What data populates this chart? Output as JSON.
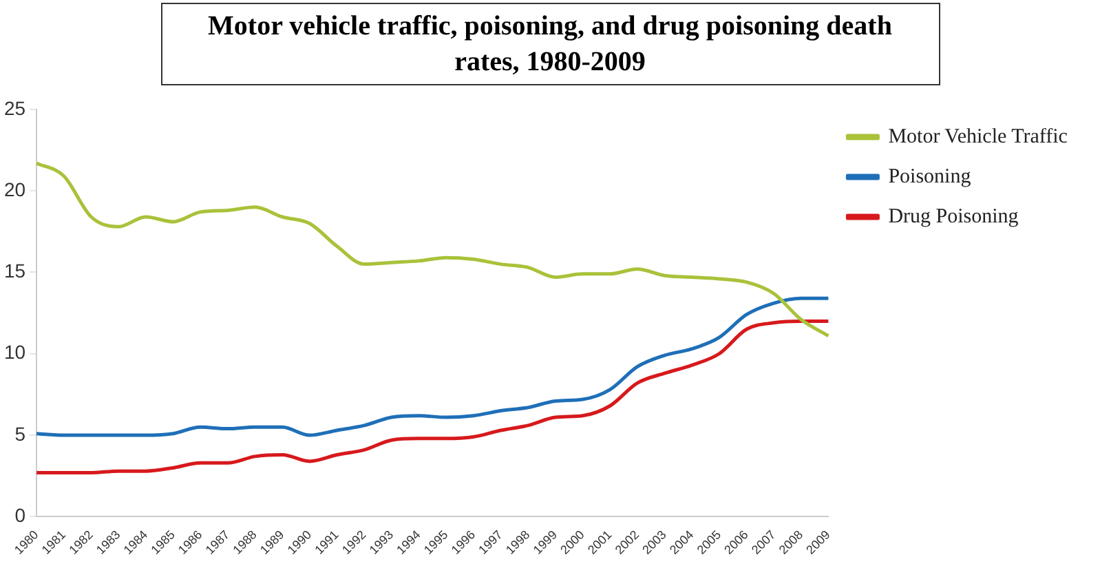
{
  "chart_data": {
    "type": "line",
    "title": "Motor vehicle traffic, poisoning, and drug poisoning death rates, 1980-2009",
    "categories": [
      "1980",
      "1981",
      "1982",
      "1983",
      "1984",
      "1985",
      "1986",
      "1987",
      "1988",
      "1989",
      "1990",
      "1991",
      "1992",
      "1993",
      "1994",
      "1995",
      "1996",
      "1997",
      "1998",
      "1999",
      "2000",
      "2001",
      "2002",
      "2003",
      "2004",
      "2005",
      "2006",
      "2007",
      "2008",
      "2009"
    ],
    "series": [
      {
        "name": "Motor Vehicle Traffic",
        "color": "#a9c23a",
        "values": [
          21.7,
          20.9,
          18.4,
          17.8,
          18.4,
          18.1,
          18.7,
          18.8,
          19.0,
          18.4,
          18.0,
          16.6,
          15.5,
          15.6,
          15.7,
          15.9,
          15.8,
          15.5,
          15.3,
          14.7,
          14.9,
          14.9,
          15.2,
          14.8,
          14.7,
          14.6,
          14.4,
          13.7,
          12.1,
          11.1
        ]
      },
      {
        "name": "Poisoning",
        "color": "#1f6fb8",
        "values": [
          5.1,
          5.0,
          5.0,
          5.0,
          5.0,
          5.1,
          5.5,
          5.4,
          5.5,
          5.5,
          5.0,
          5.3,
          5.6,
          6.1,
          6.2,
          6.1,
          6.2,
          6.5,
          6.7,
          7.1,
          7.2,
          7.8,
          9.2,
          9.9,
          10.3,
          11.0,
          12.4,
          13.1,
          13.4,
          13.4
        ]
      },
      {
        "name": "Drug Poisoning",
        "color": "#d7191c",
        "values": [
          2.7,
          2.7,
          2.7,
          2.8,
          2.8,
          3.0,
          3.3,
          3.3,
          3.7,
          3.8,
          3.4,
          3.8,
          4.1,
          4.7,
          4.8,
          4.8,
          4.9,
          5.3,
          5.6,
          6.1,
          6.2,
          6.8,
          8.2,
          8.8,
          9.3,
          10.0,
          11.5,
          11.9,
          12.0,
          12.0
        ]
      }
    ],
    "ylim": [
      0,
      25
    ],
    "yticks": [
      0,
      5,
      10,
      15,
      20,
      25
    ],
    "grid": false,
    "legend": "top right",
    "marker": "none",
    "line_style": "solid"
  }
}
